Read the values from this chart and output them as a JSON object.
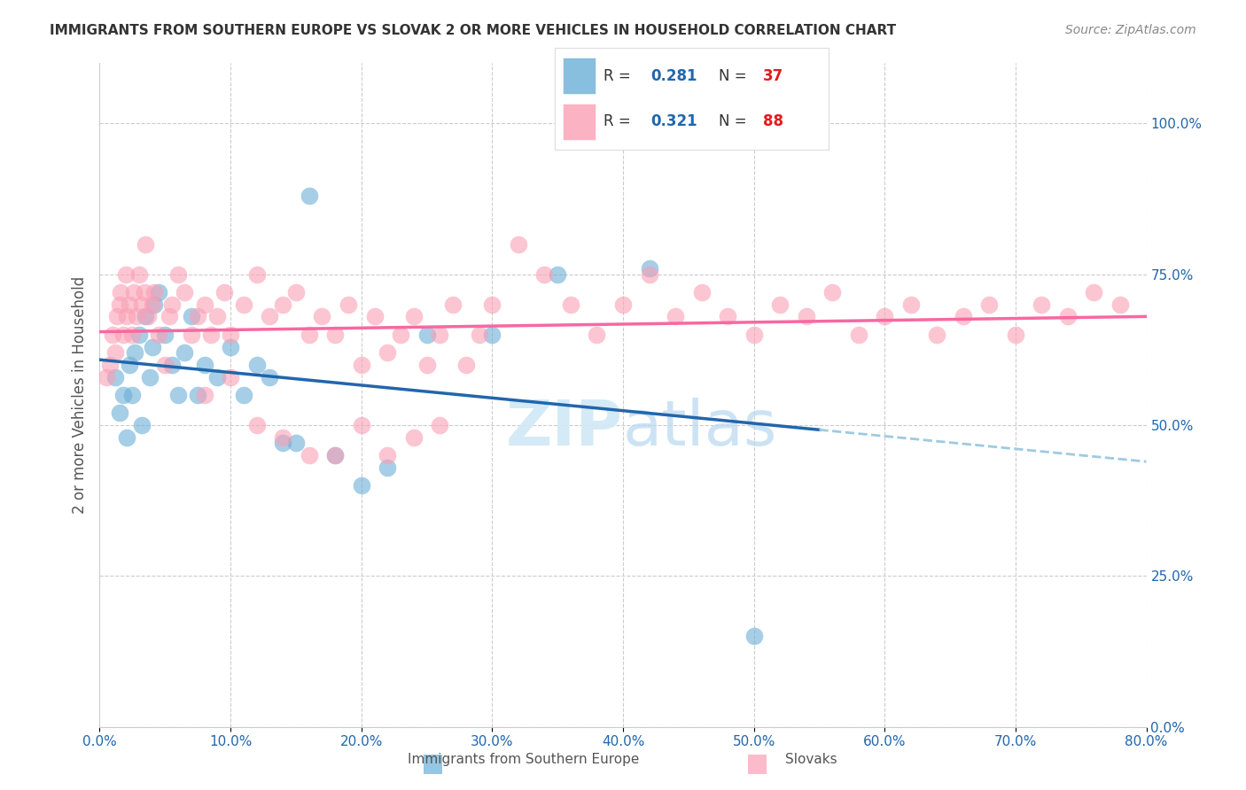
{
  "title": "IMMIGRANTS FROM SOUTHERN EUROPE VS SLOVAK 2 OR MORE VEHICLES IN HOUSEHOLD CORRELATION CHART",
  "source": "Source: ZipAtlas.com",
  "xlabel_bottom": "",
  "ylabel_left": "2 or more Vehicles in Household",
  "xlabel_label1": "Immigrants from Southern Europe",
  "xlabel_label2": "Slovaks",
  "x_min": 0.0,
  "x_max": 80.0,
  "y_min": 0.0,
  "y_max": 110.0,
  "right_yticks": [
    0,
    25.0,
    50.0,
    75.0,
    100.0
  ],
  "bottom_xticks": [
    0.0,
    10.0,
    20.0,
    30.0,
    40.0,
    50.0,
    60.0,
    70.0,
    80.0
  ],
  "legend_r_blue": "R = 0.281",
  "legend_n_blue": "N = 37",
  "legend_r_pink": "R = 0.321",
  "legend_n_pink": "N = 88",
  "blue_color": "#6baed6",
  "pink_color": "#fa9fb5",
  "blue_line_color": "#2166ac",
  "pink_line_color": "#f768a1",
  "dashed_line_color": "#9ecae1",
  "watermark_text": "ZIPatlas",
  "watermark_color": "#d0e8f5",
  "blue_scatter_x": [
    1.2,
    1.5,
    1.8,
    2.1,
    2.3,
    2.5,
    2.7,
    3.0,
    3.2,
    3.5,
    3.8,
    4.0,
    4.2,
    4.5,
    5.0,
    5.5,
    6.0,
    6.5,
    7.0,
    7.5,
    8.0,
    9.0,
    10.0,
    11.0,
    12.0,
    13.0,
    14.0,
    15.0,
    16.0,
    18.0,
    20.0,
    22.0,
    25.0,
    30.0,
    35.0,
    42.0,
    50.0
  ],
  "blue_scatter_y": [
    58,
    52,
    55,
    48,
    60,
    55,
    62,
    65,
    50,
    68,
    58,
    63,
    70,
    72,
    65,
    60,
    55,
    62,
    68,
    55,
    60,
    58,
    63,
    55,
    60,
    58,
    47,
    47,
    88,
    45,
    40,
    43,
    65,
    65,
    75,
    76,
    15
  ],
  "pink_scatter_x": [
    0.5,
    0.8,
    1.0,
    1.2,
    1.3,
    1.5,
    1.6,
    1.8,
    2.0,
    2.1,
    2.3,
    2.5,
    2.6,
    2.8,
    3.0,
    3.2,
    3.4,
    3.5,
    3.7,
    4.0,
    4.2,
    4.5,
    5.0,
    5.3,
    5.5,
    6.0,
    6.5,
    7.0,
    7.5,
    8.0,
    8.5,
    9.0,
    9.5,
    10.0,
    11.0,
    12.0,
    13.0,
    14.0,
    15.0,
    16.0,
    17.0,
    18.0,
    19.0,
    20.0,
    21.0,
    22.0,
    23.0,
    24.0,
    25.0,
    26.0,
    27.0,
    28.0,
    29.0,
    30.0,
    32.0,
    34.0,
    36.0,
    38.0,
    40.0,
    42.0,
    44.0,
    46.0,
    48.0,
    50.0,
    52.0,
    54.0,
    56.0,
    58.0,
    60.0,
    62.0,
    64.0,
    66.0,
    68.0,
    70.0,
    72.0,
    74.0,
    76.0,
    78.0,
    8.0,
    10.0,
    12.0,
    14.0,
    16.0,
    18.0,
    20.0,
    22.0,
    24.0,
    26.0
  ],
  "pink_scatter_y": [
    58,
    60,
    65,
    62,
    68,
    70,
    72,
    65,
    75,
    68,
    70,
    65,
    72,
    68,
    75,
    70,
    72,
    80,
    68,
    70,
    72,
    65,
    60,
    68,
    70,
    75,
    72,
    65,
    68,
    70,
    65,
    68,
    72,
    65,
    70,
    75,
    68,
    70,
    72,
    65,
    68,
    65,
    70,
    60,
    68,
    62,
    65,
    68,
    60,
    65,
    70,
    60,
    65,
    70,
    80,
    75,
    70,
    65,
    70,
    75,
    68,
    72,
    68,
    65,
    70,
    68,
    72,
    65,
    68,
    70,
    65,
    68,
    70,
    65,
    70,
    68,
    72,
    70,
    55,
    58,
    50,
    48,
    45,
    45,
    50,
    45,
    48,
    50
  ]
}
